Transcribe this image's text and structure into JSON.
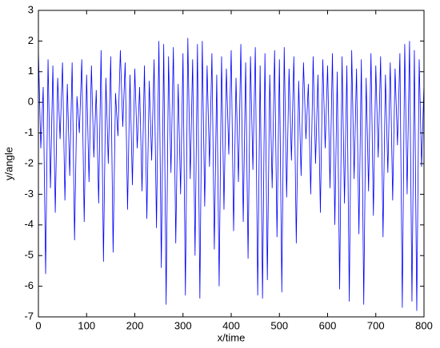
{
  "chart_data": {
    "type": "line",
    "xlabel": "x/time",
    "ylabel": "y/angle",
    "x": [
      0,
      5,
      10,
      15,
      20,
      25,
      30,
      35,
      40,
      45,
      50,
      55,
      60,
      65,
      70,
      75,
      80,
      85,
      90,
      95,
      100,
      105,
      110,
      115,
      120,
      125,
      130,
      135,
      140,
      145,
      150,
      155,
      160,
      165,
      170,
      175,
      180,
      185,
      190,
      195,
      200,
      205,
      210,
      215,
      220,
      225,
      230,
      235,
      240,
      245,
      250,
      255,
      260,
      265,
      270,
      275,
      280,
      285,
      290,
      295,
      300,
      305,
      310,
      315,
      320,
      325,
      330,
      335,
      340,
      345,
      350,
      355,
      360,
      365,
      370,
      375,
      380,
      385,
      390,
      395,
      400,
      405,
      410,
      415,
      420,
      425,
      430,
      435,
      440,
      445,
      450,
      455,
      460,
      465,
      470,
      475,
      480,
      485,
      490,
      495,
      500,
      505,
      510,
      515,
      520,
      525,
      530,
      535,
      540,
      545,
      550,
      555,
      560,
      565,
      570,
      575,
      580,
      585,
      590,
      595,
      600,
      605,
      610,
      615,
      620,
      625,
      630,
      635,
      640,
      645,
      650,
      655,
      660,
      665,
      670,
      675,
      680,
      685,
      690,
      695,
      700,
      705,
      710,
      715,
      720,
      725,
      730,
      735,
      740,
      745,
      750,
      755,
      760,
      765,
      770,
      775,
      780,
      785,
      790,
      795,
      800
    ],
    "series": [
      {
        "color": "#0000ff",
        "values": [
          1.7,
          -1.5,
          0.5,
          -5.6,
          1.4,
          -2.8,
          1.2,
          -3.6,
          0.8,
          -1.2,
          1.3,
          -3.2,
          0.6,
          -2.4,
          1.3,
          -4.5,
          0.2,
          -1.0,
          1.4,
          -3.9,
          0.9,
          -2.6,
          1.2,
          -1.8,
          0.4,
          -3.3,
          1.7,
          -5.2,
          0.8,
          -2.0,
          1.5,
          -4.9,
          0.3,
          -1.1,
          1.7,
          -0.8,
          1.3,
          -3.5,
          0.9,
          -2.7,
          1.1,
          -1.5,
          0.5,
          -2.9,
          1.2,
          -3.8,
          0.7,
          -1.9,
          1.4,
          -4.1,
          2.0,
          -5.4,
          1.9,
          -6.6,
          1.5,
          -2.3,
          1.8,
          -4.6,
          0.6,
          -3.0,
          1.6,
          -6.3,
          2.1,
          -2.5,
          1.4,
          -5.0,
          1.9,
          -6.4,
          2.0,
          -3.4,
          1.2,
          -2.1,
          1.6,
          -4.8,
          0.9,
          -6.0,
          1.5,
          -3.5,
          1.1,
          -1.7,
          1.7,
          -4.2,
          0.8,
          -2.6,
          1.9,
          -3.9,
          1.3,
          -5.1,
          1.5,
          -2.2,
          1.8,
          -6.3,
          1.2,
          -6.4,
          1.6,
          -5.8,
          0.9,
          -2.8,
          1.7,
          -4.4,
          1.4,
          -6.2,
          1.8,
          -3.1,
          1.1,
          -1.9,
          1.5,
          -4.6,
          0.7,
          -2.4,
          1.3,
          -1.2,
          0.6,
          -3.0,
          1.5,
          -2.0,
          0.9,
          -3.6,
          1.4,
          -1.5,
          1.2,
          -2.8,
          1.6,
          -4.0,
          1.0,
          -6.1,
          1.5,
          -3.3,
          1.2,
          -6.5,
          1.7,
          -2.5,
          1.1,
          -4.3,
          1.4,
          -6.6,
          0.8,
          -2.9,
          1.6,
          -3.7,
          1.2,
          -1.8,
          1.5,
          -4.4,
          0.9,
          -2.3,
          1.3,
          -3.2,
          1.1,
          -1.4,
          1.6,
          -6.7,
          1.9,
          -3.0,
          2.0,
          -6.5,
          1.7,
          -6.8,
          1.4,
          -2.1,
          0.6
        ]
      }
    ],
    "xlim": [
      0,
      800
    ],
    "ylim": [
      -7,
      3
    ],
    "xticks": [
      0,
      100,
      200,
      300,
      400,
      500,
      600,
      700,
      800
    ],
    "yticks": [
      -7,
      -6,
      -5,
      -4,
      -3,
      -2,
      -1,
      0,
      1,
      2,
      3
    ]
  }
}
